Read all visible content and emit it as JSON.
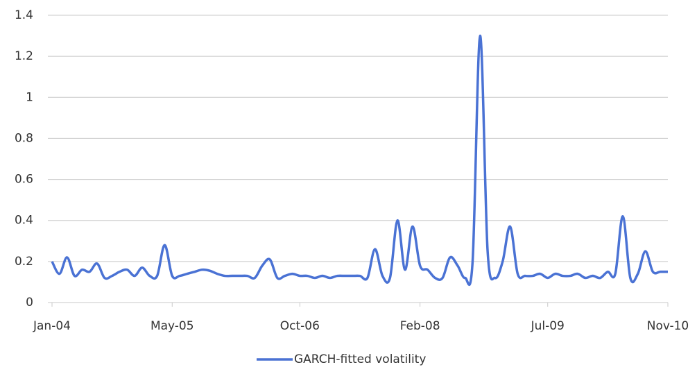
{
  "chart_data": {
    "type": "line",
    "x": [
      "2004-01",
      "2004-02",
      "2004-03",
      "2004-04",
      "2004-05",
      "2004-06",
      "2004-07",
      "2004-08",
      "2004-09",
      "2004-10",
      "2004-11",
      "2004-12",
      "2005-01",
      "2005-02",
      "2005-03",
      "2005-04",
      "2005-05",
      "2005-06",
      "2005-07",
      "2005-08",
      "2005-09",
      "2005-10",
      "2005-11",
      "2005-12",
      "2006-01",
      "2006-02",
      "2006-03",
      "2006-04",
      "2006-05",
      "2006-06",
      "2006-07",
      "2006-08",
      "2006-09",
      "2006-10",
      "2006-11",
      "2006-12",
      "2007-01",
      "2007-02",
      "2007-03",
      "2007-04",
      "2007-05",
      "2007-06",
      "2007-07",
      "2007-08",
      "2007-09",
      "2007-10",
      "2007-11",
      "2007-12",
      "2008-01",
      "2008-02",
      "2008-03",
      "2008-04",
      "2008-05",
      "2008-06",
      "2008-07",
      "2008-08",
      "2008-09",
      "2008-10",
      "2008-11",
      "2008-12",
      "2009-01",
      "2009-02",
      "2009-03",
      "2009-04",
      "2009-05",
      "2009-06",
      "2009-07",
      "2009-08",
      "2009-09",
      "2009-10",
      "2009-11",
      "2009-12",
      "2010-01",
      "2010-02",
      "2010-03",
      "2010-04",
      "2010-05",
      "2010-06",
      "2010-07",
      "2010-08",
      "2010-09",
      "2010-10",
      "2010-11"
    ],
    "series": [
      {
        "name": "GARCH-fitted volatility",
        "color": "#4a72d4",
        "values": [
          0.2,
          0.14,
          0.22,
          0.13,
          0.16,
          0.15,
          0.19,
          0.12,
          0.13,
          0.15,
          0.16,
          0.13,
          0.17,
          0.13,
          0.13,
          0.28,
          0.13,
          0.13,
          0.14,
          0.15,
          0.16,
          0.155,
          0.14,
          0.13,
          0.13,
          0.13,
          0.13,
          0.12,
          0.18,
          0.21,
          0.12,
          0.13,
          0.14,
          0.13,
          0.13,
          0.12,
          0.13,
          0.12,
          0.13,
          0.13,
          0.13,
          0.13,
          0.12,
          0.26,
          0.13,
          0.12,
          0.4,
          0.16,
          0.37,
          0.18,
          0.16,
          0.12,
          0.12,
          0.22,
          0.18,
          0.12,
          0.2,
          1.3,
          0.25,
          0.12,
          0.2,
          0.37,
          0.14,
          0.13,
          0.13,
          0.14,
          0.12,
          0.14,
          0.13,
          0.13,
          0.14,
          0.12,
          0.13,
          0.12,
          0.15,
          0.14,
          0.42,
          0.12,
          0.14,
          0.25,
          0.15,
          0.15,
          0.15
        ]
      }
    ],
    "xlim": [
      "2004-01",
      "2010-11"
    ],
    "xticks": [
      {
        "value": "2004-01",
        "label": "Jan-04"
      },
      {
        "value": "2005-05",
        "label": "May-05"
      },
      {
        "value": "2006-10",
        "label": "Oct-06"
      },
      {
        "value": "2008-02",
        "label": "Feb-08"
      },
      {
        "value": "2009-07",
        "label": "Jul-09"
      },
      {
        "value": "2010-11",
        "label": "Nov-10"
      }
    ],
    "ylim": [
      0,
      1.4
    ],
    "yticks": [
      0,
      0.2,
      0.4,
      0.6,
      0.8,
      1,
      1.2,
      1.4
    ],
    "grid": true,
    "legend": "bottom"
  }
}
